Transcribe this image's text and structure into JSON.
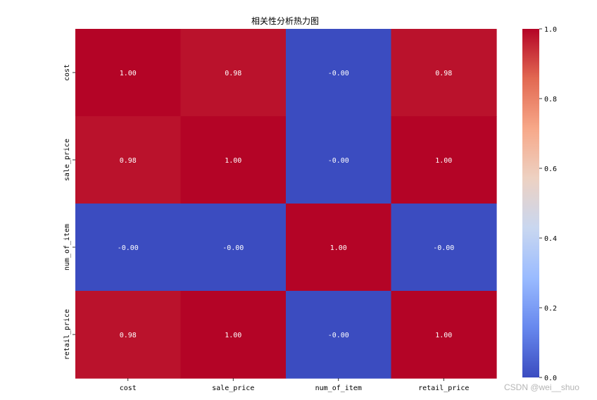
{
  "chart_data": {
    "type": "heatmap",
    "title": "相关性分析热力图",
    "x_labels": [
      "cost",
      "sale_price",
      "num_of_item",
      "retail_price"
    ],
    "y_labels": [
      "cost",
      "sale_price",
      "num_of_item",
      "retail_price"
    ],
    "values": [
      [
        1.0,
        0.98,
        -0.0,
        0.98
      ],
      [
        0.98,
        1.0,
        -0.0,
        1.0
      ],
      [
        -0.0,
        -0.0,
        1.0,
        -0.0
      ],
      [
        0.98,
        1.0,
        -0.0,
        1.0
      ]
    ],
    "annotations": [
      [
        "1.00",
        "0.98",
        "-0.00",
        "0.98"
      ],
      [
        "0.98",
        "1.00",
        "-0.00",
        "1.00"
      ],
      [
        "-0.00",
        "-0.00",
        "1.00",
        "-0.00"
      ],
      [
        "0.98",
        "1.00",
        "-0.00",
        "1.00"
      ]
    ],
    "colormap": "coolwarm",
    "color_range": [
      0.0,
      1.0
    ],
    "colorbar_ticks": [
      "0.0",
      "0.2",
      "0.4",
      "0.6",
      "0.8",
      "1.0"
    ],
    "colorbar_tick_values": [
      0.0,
      0.2,
      0.4,
      0.6,
      0.8,
      1.0
    ],
    "colorbar_stops": [
      "#3b4cc0",
      "#6788ee",
      "#9abbff",
      "#c9d7f0",
      "#edd1c2",
      "#f7a889",
      "#e26952",
      "#b40426"
    ]
  },
  "watermark": "CSDN @wei__shuo"
}
